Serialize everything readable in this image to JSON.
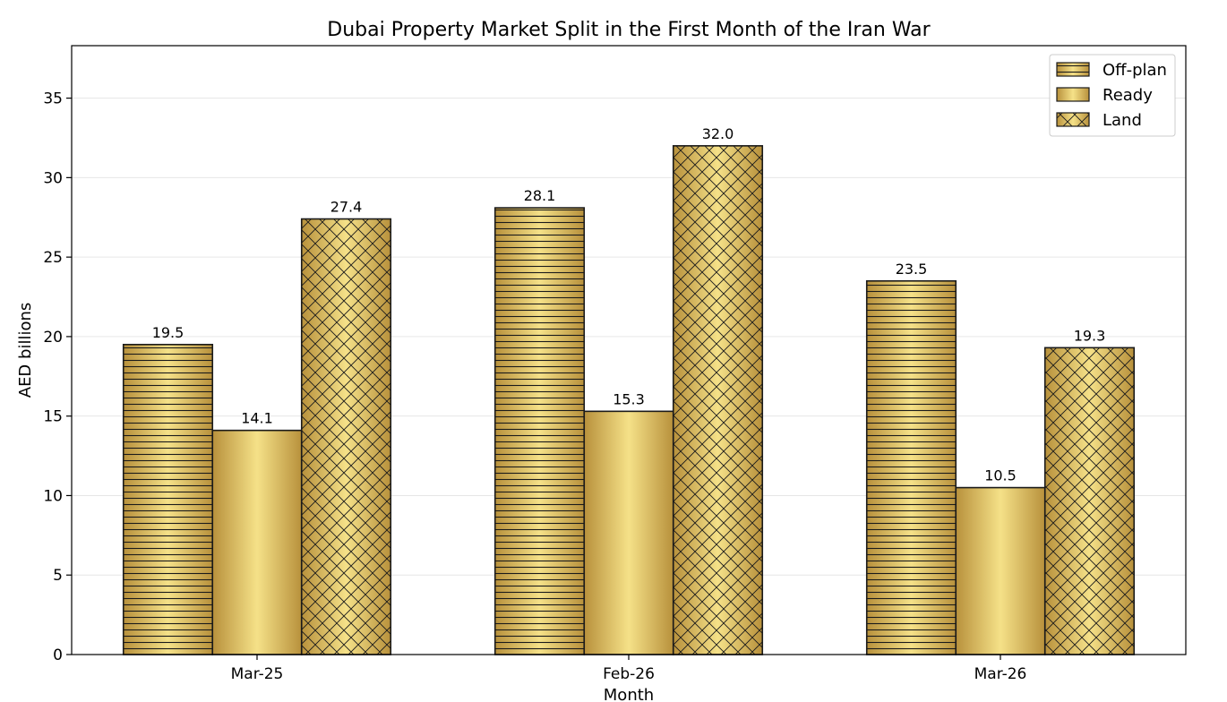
{
  "chart_data": {
    "type": "bar",
    "title": "Dubai Property Market Split in the First Month of the Iran War",
    "xlabel": "Month",
    "ylabel": "AED billions",
    "categories": [
      "Mar-25",
      "Feb-26",
      "Mar-26"
    ],
    "series": [
      {
        "name": "Off-plan",
        "values": [
          19.5,
          28.1,
          23.5
        ],
        "labels": [
          "19.5",
          "28.1",
          "23.5"
        ],
        "pattern": "horizontal-lines"
      },
      {
        "name": "Ready",
        "values": [
          14.1,
          15.3,
          10.5
        ],
        "labels": [
          "14.1",
          "15.3",
          "10.5"
        ],
        "pattern": "none"
      },
      {
        "name": "Land",
        "values": [
          27.4,
          32.0,
          19.3
        ],
        "labels": [
          "27.4",
          "32.0",
          "19.3"
        ],
        "pattern": "cross-hatch"
      }
    ],
    "ylim": [
      0,
      38.3
    ],
    "yticks": [
      0,
      5,
      10,
      15,
      20,
      25,
      30,
      35
    ],
    "grid": "horizontal",
    "legend_position": "top-right",
    "colors": {
      "gold_dark": "#b8913c",
      "gold_mid": "#d8b75a",
      "gold_light": "#f5e188",
      "edge": "#1a1a1a",
      "grid": "#e6e6e6"
    }
  }
}
